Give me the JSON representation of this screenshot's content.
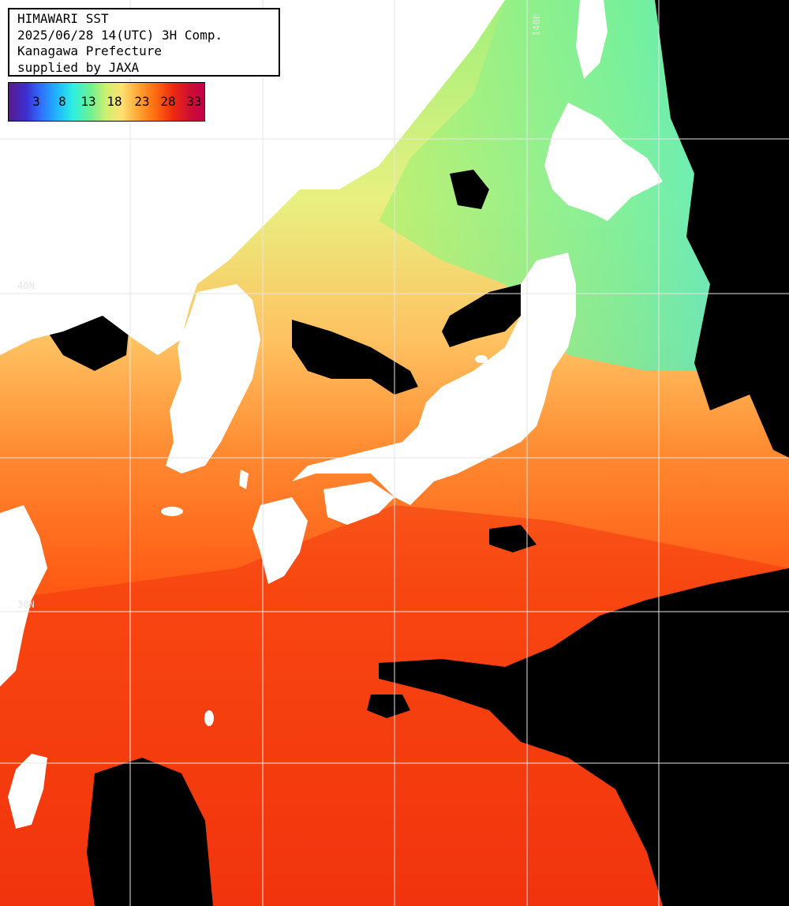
{
  "header": {
    "lines": [
      "HIMAWARI SST",
      "2025/06/28 14(UTC) 3H Comp.",
      "Kanagawa Prefecture",
      "supplied by JAXA"
    ]
  },
  "legend": {
    "labels": [
      "3",
      "8",
      "13",
      "18",
      "23",
      "28",
      "33"
    ],
    "colors": [
      "#5a1a8c",
      "#2f74ff",
      "#2ef0e0",
      "#d0f070",
      "#ffa030",
      "#ee2a10",
      "#c0004a"
    ]
  },
  "grid": {
    "lat_labels": [
      "40N",
      "30N"
    ],
    "lon_labels": [
      "140E"
    ],
    "color": "#e6e6e6"
  },
  "colors": {
    "land": "#ffffff",
    "no_data": "#000000",
    "sst_warm": "#ff5a14",
    "sst_hot": "#f0300c",
    "sst_mid": "#ffa040",
    "sst_cool": "#d8f078",
    "sst_cold": "#60f0c0"
  }
}
